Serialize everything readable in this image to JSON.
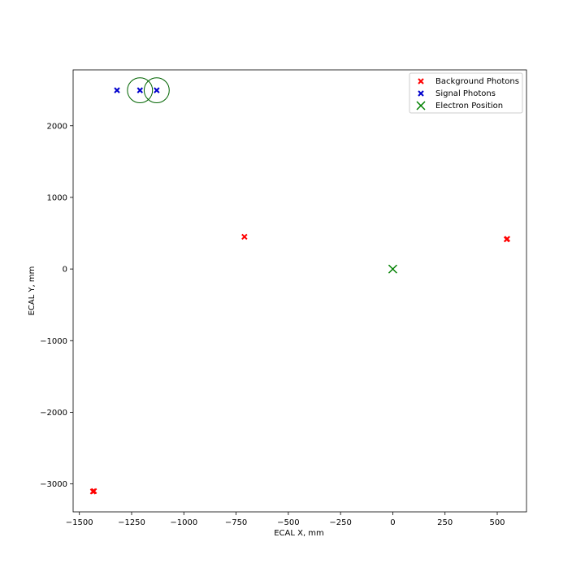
{
  "chart_data": {
    "type": "scatter",
    "title": "",
    "xlabel": "ECAL X, mm",
    "ylabel": "ECAL Y, mm",
    "xlim": [
      -1530,
      640
    ],
    "ylim": [
      -3390,
      2780
    ],
    "xticks": [
      -1500,
      -1250,
      -1000,
      -750,
      -500,
      -250,
      0,
      250,
      500
    ],
    "xtick_labels": [
      "−1500",
      "−1250",
      "−1000",
      "−750",
      "−500",
      "−250",
      "0",
      "250",
      "500"
    ],
    "yticks": [
      -3000,
      -2000,
      -1000,
      0,
      1000,
      2000
    ],
    "ytick_labels": [
      "−3000",
      "−2000",
      "−1000",
      "0",
      "1000",
      "2000"
    ],
    "grid": false,
    "legend_position": "top-right",
    "series": [
      {
        "name": "Background Photons",
        "color": "#ff0000",
        "marker": "x",
        "points": [
          [
            -1435,
            -3105
          ],
          [
            -1430,
            -3100
          ],
          [
            -710,
            450
          ],
          [
            545,
            415
          ],
          [
            548,
            420
          ]
        ]
      },
      {
        "name": "Signal Photons",
        "color": "#0000cc",
        "marker": "x",
        "points": [
          [
            -1320,
            2495
          ],
          [
            -1210,
            2495
          ],
          [
            -1130,
            2495
          ]
        ]
      },
      {
        "name": "Electron Position",
        "color": "#008000",
        "marker": "x-large",
        "points": [
          [
            0,
            0
          ]
        ]
      }
    ],
    "circles": {
      "color": "#006400",
      "items": [
        {
          "center": [
            -1210,
            2495
          ],
          "radius": 60
        },
        {
          "center": [
            -1130,
            2495
          ],
          "radius": 60
        }
      ]
    }
  }
}
